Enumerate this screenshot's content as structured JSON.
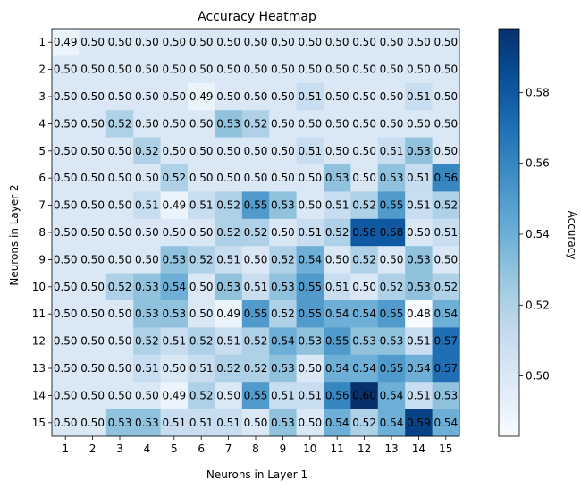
{
  "chart_data": {
    "type": "heatmap",
    "title": "Accuracy Heatmap",
    "xlabel": "Neurons in Layer 1",
    "ylabel": "Neurons in Layer 2",
    "x_categories": [
      "1",
      "2",
      "3",
      "4",
      "5",
      "6",
      "7",
      "8",
      "9",
      "10",
      "11",
      "12",
      "13",
      "14",
      "15"
    ],
    "y_categories": [
      "1",
      "2",
      "3",
      "4",
      "5",
      "6",
      "7",
      "8",
      "9",
      "10",
      "11",
      "12",
      "13",
      "14",
      "15"
    ],
    "values": [
      [
        0.49,
        0.5,
        0.5,
        0.5,
        0.5,
        0.5,
        0.5,
        0.5,
        0.5,
        0.5,
        0.5,
        0.5,
        0.5,
        0.5,
        0.5
      ],
      [
        0.5,
        0.5,
        0.5,
        0.5,
        0.5,
        0.5,
        0.5,
        0.5,
        0.5,
        0.5,
        0.5,
        0.5,
        0.5,
        0.5,
        0.5
      ],
      [
        0.5,
        0.5,
        0.5,
        0.5,
        0.5,
        0.49,
        0.5,
        0.5,
        0.5,
        0.51,
        0.5,
        0.5,
        0.5,
        0.51,
        0.5
      ],
      [
        0.5,
        0.5,
        0.52,
        0.5,
        0.5,
        0.5,
        0.53,
        0.52,
        0.5,
        0.5,
        0.5,
        0.5,
        0.5,
        0.5,
        0.5
      ],
      [
        0.5,
        0.5,
        0.5,
        0.52,
        0.5,
        0.5,
        0.5,
        0.5,
        0.5,
        0.51,
        0.5,
        0.5,
        0.51,
        0.53,
        0.5
      ],
      [
        0.5,
        0.5,
        0.5,
        0.5,
        0.52,
        0.5,
        0.5,
        0.5,
        0.5,
        0.5,
        0.53,
        0.5,
        0.53,
        0.51,
        0.56
      ],
      [
        0.5,
        0.5,
        0.5,
        0.51,
        0.49,
        0.51,
        0.52,
        0.55,
        0.53,
        0.5,
        0.51,
        0.52,
        0.55,
        0.51,
        0.52
      ],
      [
        0.5,
        0.5,
        0.5,
        0.5,
        0.5,
        0.5,
        0.52,
        0.52,
        0.5,
        0.51,
        0.52,
        0.58,
        0.58,
        0.5,
        0.51
      ],
      [
        0.5,
        0.5,
        0.5,
        0.5,
        0.53,
        0.52,
        0.51,
        0.5,
        0.52,
        0.54,
        0.5,
        0.52,
        0.5,
        0.53,
        0.5
      ],
      [
        0.5,
        0.5,
        0.52,
        0.53,
        0.54,
        0.5,
        0.53,
        0.51,
        0.53,
        0.55,
        0.51,
        0.5,
        0.52,
        0.53,
        0.52
      ],
      [
        0.5,
        0.5,
        0.5,
        0.53,
        0.53,
        0.5,
        0.49,
        0.55,
        0.52,
        0.55,
        0.54,
        0.54,
        0.55,
        0.48,
        0.54
      ],
      [
        0.5,
        0.5,
        0.5,
        0.52,
        0.51,
        0.52,
        0.51,
        0.52,
        0.54,
        0.53,
        0.55,
        0.53,
        0.53,
        0.51,
        0.57
      ],
      [
        0.5,
        0.5,
        0.5,
        0.51,
        0.5,
        0.51,
        0.52,
        0.52,
        0.53,
        0.5,
        0.54,
        0.54,
        0.55,
        0.54,
        0.57
      ],
      [
        0.5,
        0.5,
        0.5,
        0.5,
        0.49,
        0.52,
        0.5,
        0.55,
        0.51,
        0.51,
        0.56,
        0.6,
        0.54,
        0.51,
        0.53
      ],
      [
        0.5,
        0.5,
        0.53,
        0.53,
        0.51,
        0.51,
        0.51,
        0.5,
        0.53,
        0.5,
        0.54,
        0.52,
        0.54,
        0.59,
        0.54
      ]
    ],
    "colormap": "Blues",
    "colorbar": {
      "label": "Accuracy",
      "vmin": 0.483,
      "vmax": 0.598,
      "ticks": [
        0.5,
        0.52,
        0.54,
        0.56,
        0.58
      ],
      "tick_labels": [
        "0.50",
        "0.52",
        "0.54",
        "0.56",
        "0.58"
      ]
    },
    "grid": false
  }
}
